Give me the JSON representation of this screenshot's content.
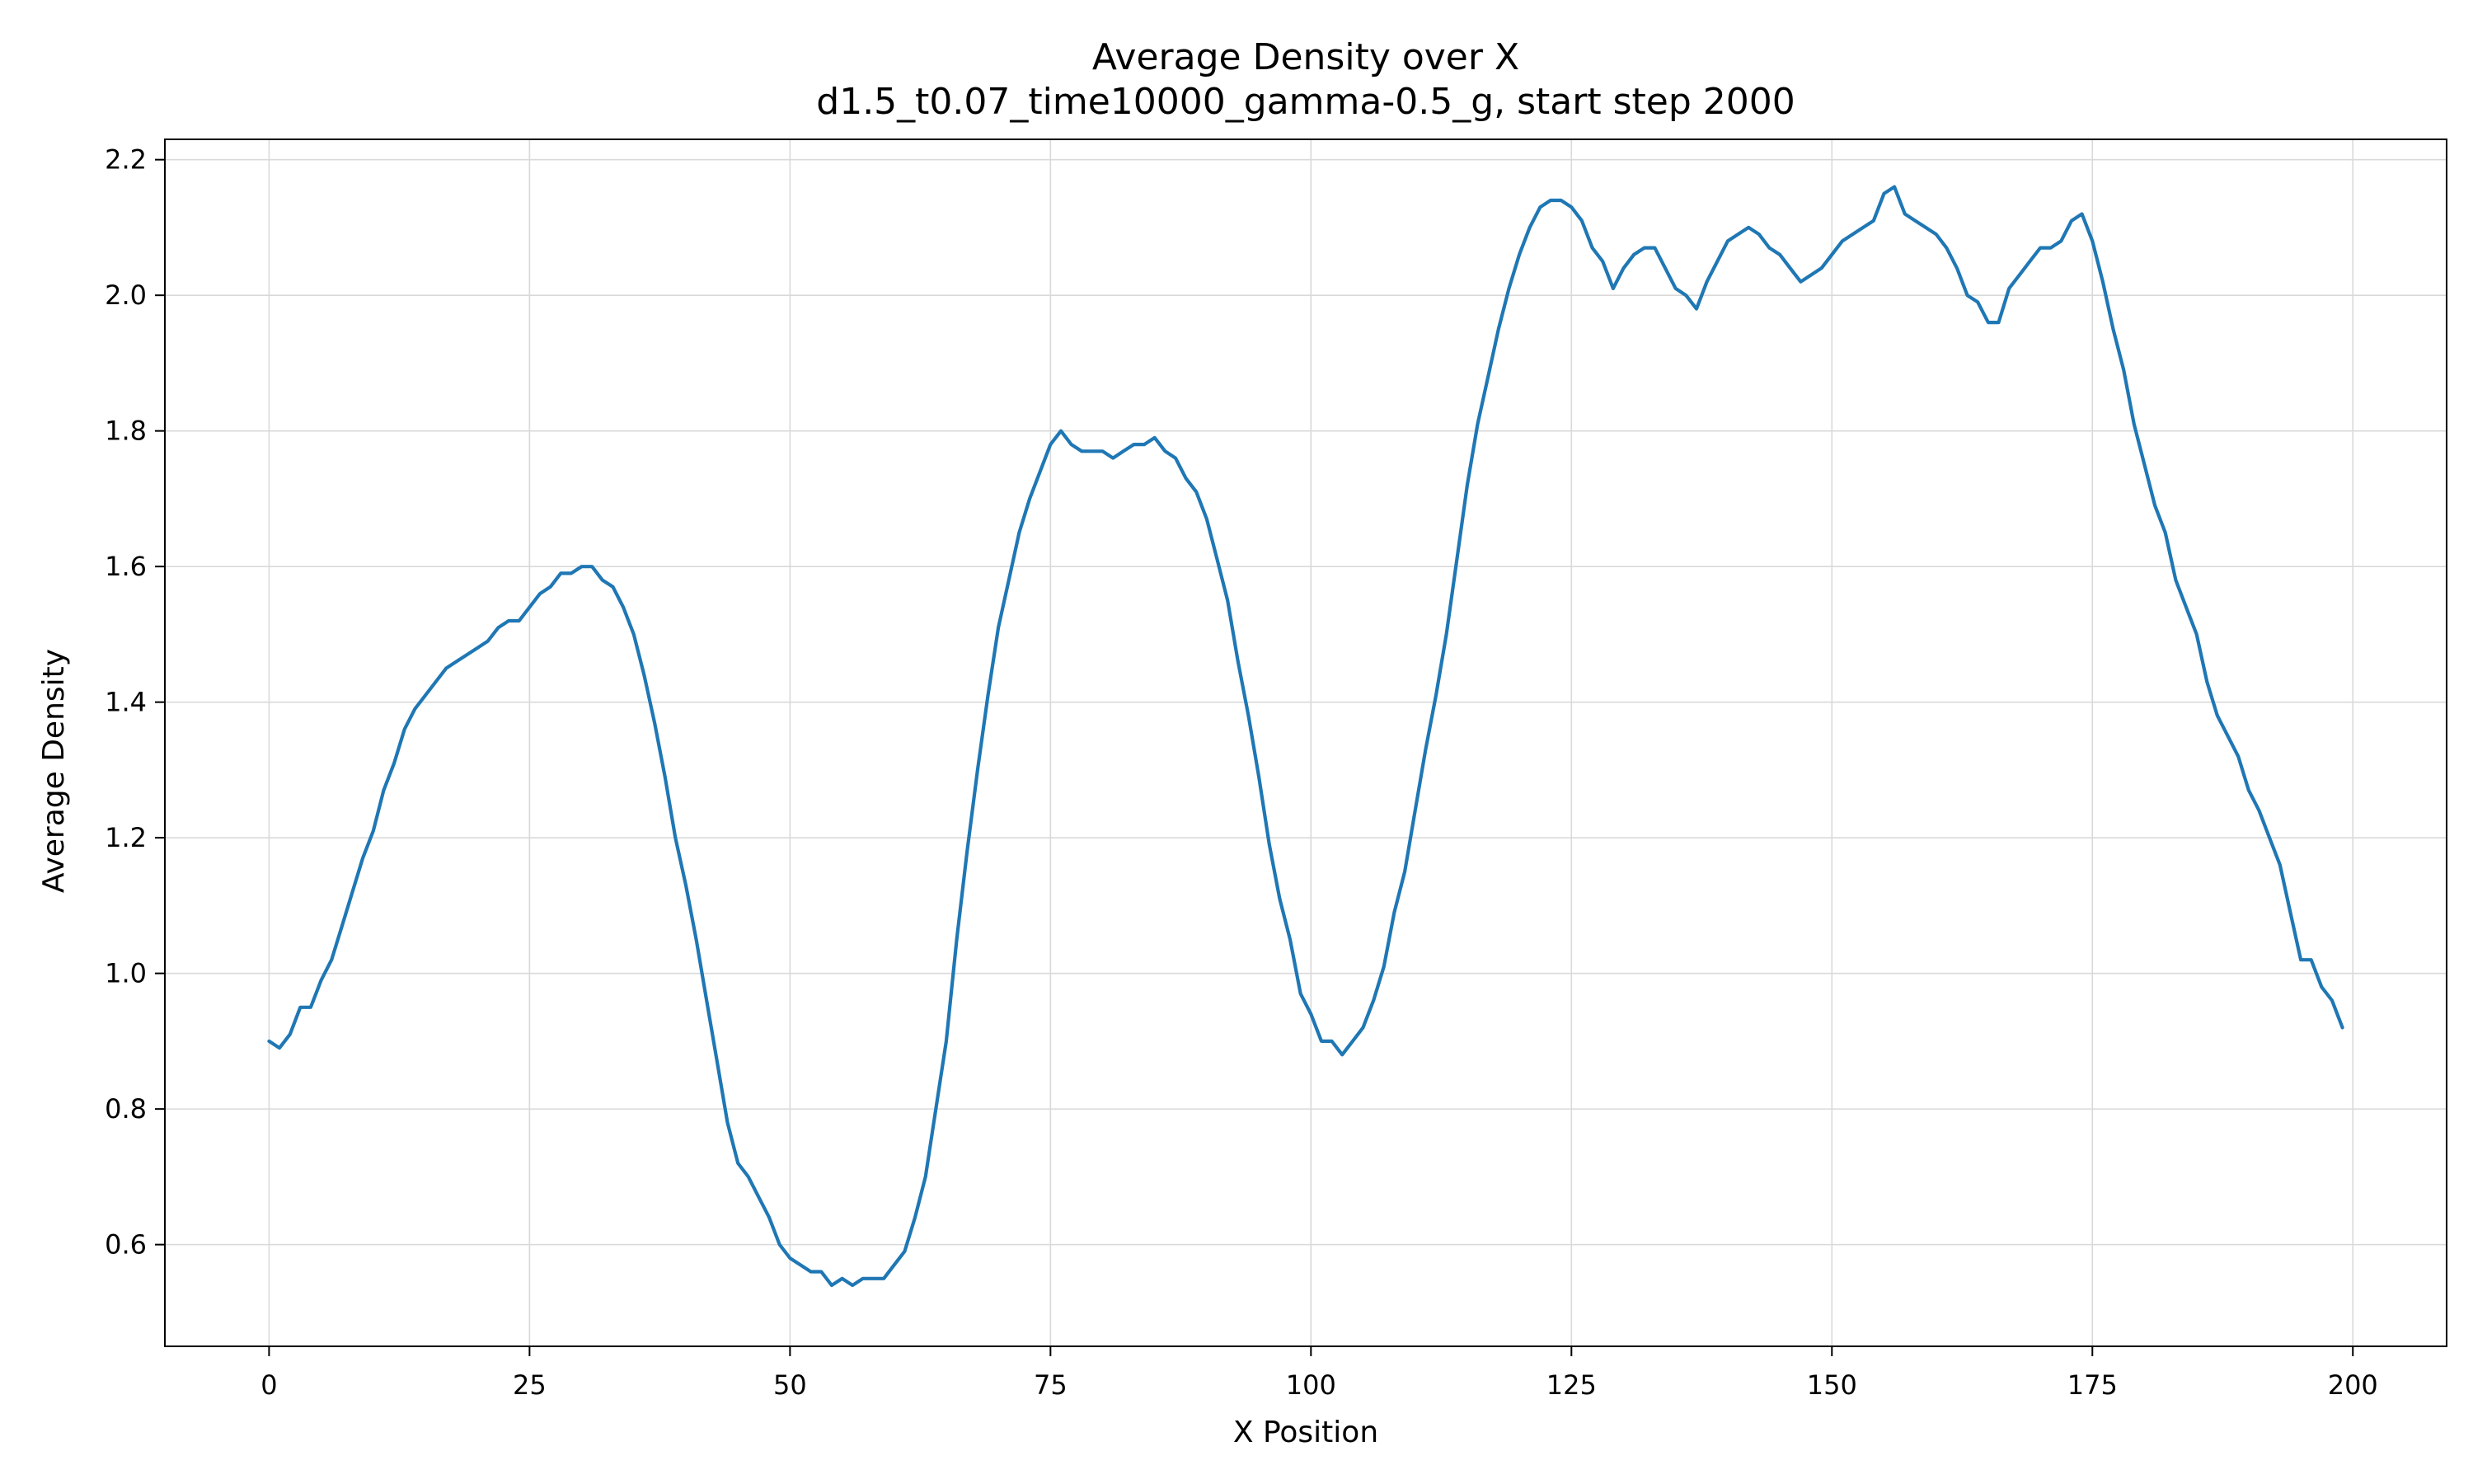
{
  "chart_data": {
    "type": "line",
    "title": "Average Density over X",
    "subtitle": "d1.5_t0.07_time10000_gamma-0.5_g, start step 2000",
    "xlabel": "X Position",
    "ylabel": "Average Density",
    "xlim": [
      -10,
      209
    ],
    "ylim": [
      0.45,
      2.23
    ],
    "xticks": [
      0,
      25,
      50,
      75,
      100,
      125,
      150,
      175,
      200
    ],
    "yticks": [
      0.6,
      0.8,
      1.0,
      1.2,
      1.4,
      1.6,
      1.8,
      2.0,
      2.2
    ],
    "ytick_labels": [
      "0.6",
      "0.8",
      "1.0",
      "1.2",
      "1.4",
      "1.6",
      "1.8",
      "2.0",
      "2.2"
    ],
    "grid": true,
    "line_color": "#1f77b4",
    "series": [
      {
        "x_start": 0,
        "x_step": 1,
        "values": [
          0.9,
          0.89,
          0.91,
          0.95,
          0.95,
          0.99,
          1.02,
          1.07,
          1.12,
          1.17,
          1.21,
          1.27,
          1.31,
          1.36,
          1.39,
          1.41,
          1.43,
          1.45,
          1.46,
          1.47,
          1.48,
          1.49,
          1.51,
          1.52,
          1.52,
          1.54,
          1.56,
          1.57,
          1.59,
          1.59,
          1.6,
          1.6,
          1.58,
          1.57,
          1.54,
          1.5,
          1.44,
          1.37,
          1.29,
          1.2,
          1.13,
          1.05,
          0.96,
          0.87,
          0.78,
          0.72,
          0.7,
          0.67,
          0.64,
          0.6,
          0.58,
          0.57,
          0.56,
          0.56,
          0.54,
          0.55,
          0.54,
          0.55,
          0.55,
          0.55,
          0.57,
          0.59,
          0.64,
          0.7,
          0.8,
          0.9,
          1.05,
          1.18,
          1.3,
          1.41,
          1.51,
          1.58,
          1.65,
          1.7,
          1.74,
          1.78,
          1.8,
          1.78,
          1.77,
          1.77,
          1.77,
          1.76,
          1.77,
          1.78,
          1.78,
          1.79,
          1.77,
          1.76,
          1.73,
          1.71,
          1.67,
          1.61,
          1.55,
          1.46,
          1.38,
          1.29,
          1.19,
          1.11,
          1.05,
          0.97,
          0.94,
          0.9,
          0.9,
          0.88,
          0.9,
          0.92,
          0.96,
          1.01,
          1.09,
          1.15,
          1.24,
          1.33,
          1.41,
          1.5,
          1.61,
          1.72,
          1.81,
          1.88,
          1.95,
          2.01,
          2.06,
          2.1,
          2.13,
          2.14,
          2.14,
          2.13,
          2.11,
          2.07,
          2.05,
          2.01,
          2.04,
          2.06,
          2.07,
          2.07,
          2.04,
          2.01,
          2.0,
          1.98,
          2.02,
          2.05,
          2.08,
          2.09,
          2.1,
          2.09,
          2.07,
          2.06,
          2.04,
          2.02,
          2.03,
          2.04,
          2.06,
          2.08,
          2.09,
          2.1,
          2.11,
          2.15,
          2.16,
          2.12,
          2.11,
          2.1,
          2.09,
          2.07,
          2.04,
          2.0,
          1.99,
          1.96,
          1.96,
          2.01,
          2.03,
          2.05,
          2.07,
          2.07,
          2.08,
          2.11,
          2.12,
          2.08,
          2.02,
          1.95,
          1.89,
          1.81,
          1.75,
          1.69,
          1.65,
          1.58,
          1.54,
          1.5,
          1.43,
          1.38,
          1.35,
          1.32,
          1.27,
          1.24,
          1.2,
          1.16,
          1.09,
          1.02,
          1.02,
          0.98,
          0.96,
          0.92
        ]
      }
    ]
  }
}
